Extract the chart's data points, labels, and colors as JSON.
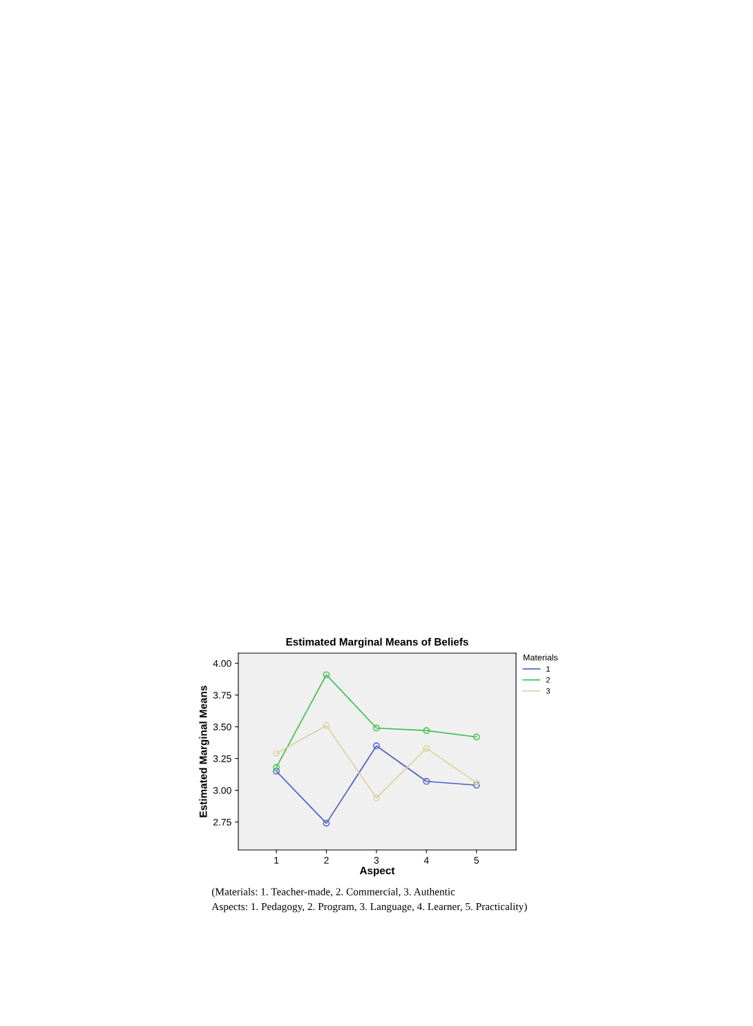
{
  "chart_data": {
    "type": "line",
    "title": "Estimated Marginal Means of Beliefs",
    "xlabel": "Aspect",
    "ylabel": "Estimated Marginal Means",
    "legend_title": "Materials",
    "x": [
      1,
      2,
      3,
      4,
      5
    ],
    "series": [
      {
        "name": "1",
        "color": "#4a5fc1",
        "values": [
          3.15,
          2.74,
          3.35,
          3.07,
          3.04
        ]
      },
      {
        "name": "2",
        "color": "#3cbf4a",
        "values": [
          3.18,
          3.91,
          3.49,
          3.47,
          3.42
        ]
      },
      {
        "name": "3",
        "color": "#d8d3a0",
        "values": [
          3.29,
          3.51,
          2.94,
          3.33,
          3.06
        ]
      }
    ],
    "xlim": [
      0.24,
      5.79
    ],
    "xticks": [
      1,
      2,
      3,
      4,
      5
    ],
    "ylim": [
      2.53,
      4.08
    ],
    "yticks": [
      {
        "value": 2.75,
        "label": "2.75"
      },
      {
        "value": 3.0,
        "label": "3.00"
      },
      {
        "value": 3.25,
        "label": "3.25"
      },
      {
        "value": 3.5,
        "label": "3.50"
      },
      {
        "value": 3.75,
        "label": "3.75"
      },
      {
        "value": 4.0,
        "label": "4.00"
      }
    ],
    "grid": false,
    "legend": "top right",
    "marker": "circle",
    "line_style": "solid",
    "annotations": [
      "(Materials: 1. Teacher-made, 2. Commercial, 3. Authentic",
      "Aspects: 1. Pedagogy, 2. Program, 3. Language, 4. Learner, 5. Practicality)"
    ]
  }
}
